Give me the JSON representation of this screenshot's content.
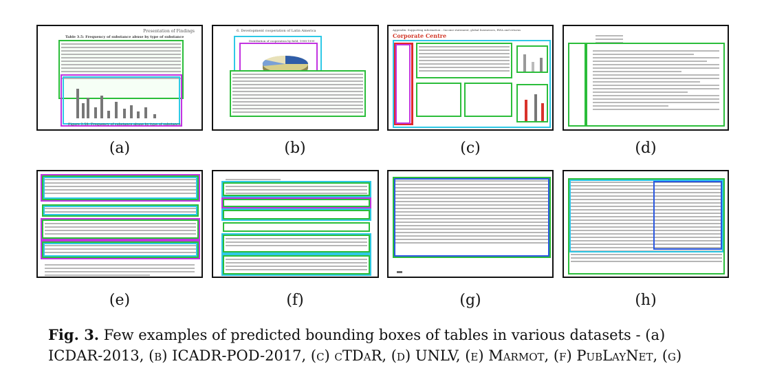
{
  "panels": [
    {
      "label": "(a)"
    },
    {
      "label": "(b)"
    },
    {
      "label": "(c)"
    },
    {
      "label": "(d)"
    },
    {
      "label": "(e)"
    },
    {
      "label": "(f)"
    },
    {
      "label": "(g)"
    },
    {
      "label": "(h)"
    }
  ],
  "panel_text": {
    "a_title": "Presentation of Findings",
    "a_table_caption": "Table 3.5: Frequency of substance abuse by type of substance",
    "a_figure_caption": "Figure 3.58: Frequency of substance abuse by type of substance",
    "b_heading": "6.  Development cooperation of Latin America",
    "b_chart_title": "Distribution of cooperation by field, 1998-1999",
    "c_header": "Appendix: Supporting information – Income statement, global businesses, RWA and returns",
    "c_title": "Corporate Centre"
  },
  "caption": {
    "fig": "Fig. 3.",
    "line1": " Few examples of predicted bounding boxes of tables in various datasets - (a)",
    "line2": "ICDAR-2013, (b) ICADR-POD-2017, (c) cTDaR, (d) UNLV, (e) Marmot, (f) PubLayNet, (g)"
  }
}
